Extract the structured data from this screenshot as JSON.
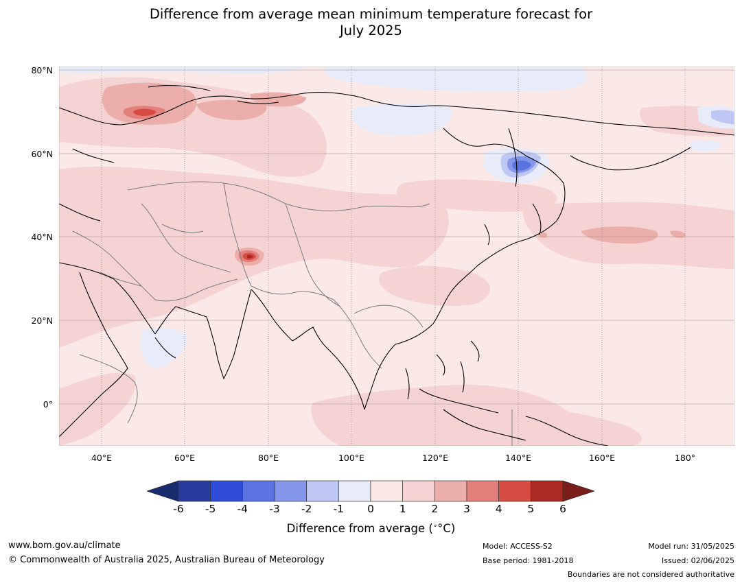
{
  "title": {
    "line1": "Difference from average mean minimum temperature forecast for",
    "line2": "July 2025"
  },
  "map": {
    "region": "Asia and Western Pacific",
    "lat_labels": [
      "80°N",
      "60°N",
      "40°N",
      "20°N",
      "0°"
    ],
    "lon_labels": [
      "40°E",
      "60°E",
      "80°E",
      "100°E",
      "120°E",
      "140°E",
      "160°E",
      "180°"
    ]
  },
  "colorbar": {
    "ticks": [
      "-6",
      "-5",
      "-4",
      "-3",
      "-2",
      "-1",
      "0",
      "1",
      "2",
      "3",
      "4",
      "5",
      "6"
    ],
    "colors": [
      "#182c6e",
      "#283c9e",
      "#2f4cd9",
      "#5a73e0",
      "#8597ea",
      "#bec7f3",
      "#e8ebfa",
      "#fbe9e8",
      "#f4d3d2",
      "#ebaeaa",
      "#e4807b",
      "#d64c42",
      "#ab2b24",
      "#7a1e1a"
    ],
    "label": "Difference from average (",
    "label_unit": "°C",
    "label_close": ")"
  },
  "footer": {
    "url": "www.bom.gov.au/climate",
    "copyright": "© Commonwealth of Australia 2025, Australian Bureau of Meteorology",
    "model": "Model: ACCESS-S2",
    "base_period": "Base period: 1981-2018",
    "model_run": "Model run: 31/05/2025",
    "issued": "Issued: 02/06/2025",
    "disclaimer": "Boundaries are not considered authoritative"
  }
}
